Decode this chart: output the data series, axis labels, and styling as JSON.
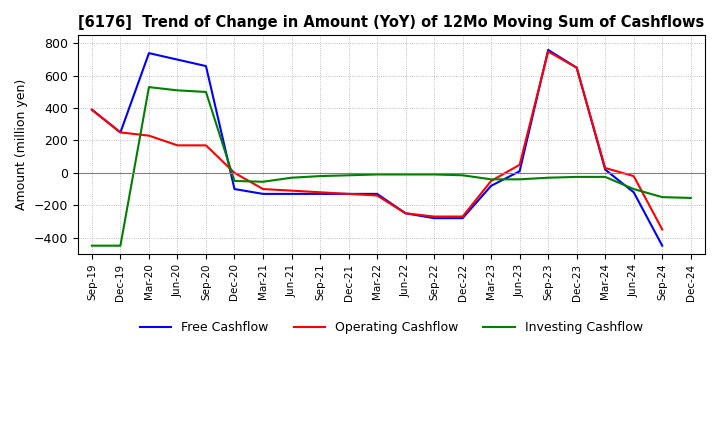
{
  "title": "[6176]  Trend of Change in Amount (YoY) of 12Mo Moving Sum of Cashflows",
  "ylabel": "Amount (million yen)",
  "ylim": [
    -500,
    850
  ],
  "yticks": [
    -400,
    -200,
    0,
    200,
    400,
    600,
    800
  ],
  "x_labels": [
    "Sep-19",
    "Dec-19",
    "Mar-20",
    "Jun-20",
    "Sep-20",
    "Dec-20",
    "Mar-21",
    "Jun-21",
    "Sep-21",
    "Dec-21",
    "Mar-22",
    "Jun-22",
    "Sep-22",
    "Dec-22",
    "Mar-23",
    "Jun-23",
    "Sep-23",
    "Dec-23",
    "Mar-24",
    "Jun-24",
    "Sep-24",
    "Dec-24"
  ],
  "operating": [
    390,
    250,
    230,
    170,
    170,
    0,
    -100,
    -110,
    -120,
    -130,
    -140,
    -250,
    -270,
    -270,
    -50,
    50,
    750,
    650,
    30,
    -20,
    -350,
    null
  ],
  "investing": [
    -450,
    -450,
    530,
    510,
    500,
    -50,
    -55,
    -30,
    -20,
    -15,
    -10,
    -10,
    -10,
    -15,
    -40,
    -40,
    -30,
    -25,
    -25,
    -100,
    -150,
    -155
  ],
  "free": [
    390,
    250,
    740,
    700,
    660,
    -100,
    -130,
    -130,
    -130,
    -130,
    -130,
    -250,
    -280,
    -280,
    -80,
    10,
    760,
    650,
    20,
    -120,
    -450,
    null
  ],
  "line_colors": {
    "operating": "#ff0000",
    "investing": "#008000",
    "free": "#0000ff"
  },
  "legend_labels": [
    "Operating Cashflow",
    "Investing Cashflow",
    "Free Cashflow"
  ],
  "background_color": "#ffffff",
  "grid_color": "#b0b0b0",
  "grid_linestyle": "dotted"
}
